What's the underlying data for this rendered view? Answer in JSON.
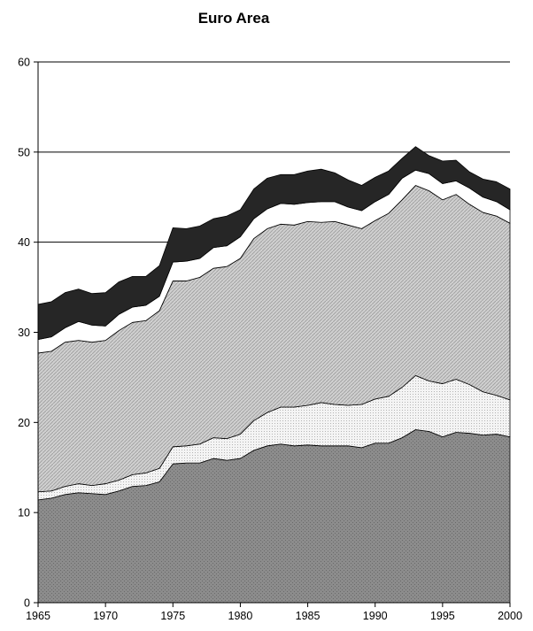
{
  "chart_data": {
    "type": "area",
    "stacked": true,
    "title": "Euro Area",
    "xlabel": "",
    "ylabel": "",
    "xlim": [
      1965,
      2000
    ],
    "ylim": [
      0,
      60
    ],
    "x_ticks": [
      1965,
      1970,
      1975,
      1980,
      1985,
      1990,
      1995,
      2000
    ],
    "y_ticks": [
      0,
      10,
      20,
      30,
      40,
      50,
      60
    ],
    "gridlines": [
      10,
      20,
      30,
      40,
      50,
      60
    ],
    "legend": "none",
    "x": [
      1965,
      1966,
      1967,
      1968,
      1969,
      1970,
      1971,
      1972,
      1973,
      1974,
      1975,
      1976,
      1977,
      1978,
      1979,
      1980,
      1981,
      1982,
      1983,
      1984,
      1985,
      1986,
      1987,
      1988,
      1989,
      1990,
      1991,
      1992,
      1993,
      1994,
      1995,
      1996,
      1997,
      1998,
      1999,
      2000
    ],
    "series": [
      {
        "color": "#8c8c8c",
        "pattern": "dark-dots",
        "values": [
          11.4,
          11.6,
          12.0,
          12.2,
          12.1,
          12.0,
          12.4,
          12.9,
          13.0,
          13.4,
          15.4,
          15.5,
          15.5,
          16.0,
          15.8,
          16.0,
          16.9,
          17.4,
          17.6,
          17.4,
          17.5,
          17.4,
          17.4,
          17.4,
          17.2,
          17.7,
          17.7,
          18.3,
          19.2,
          19.0,
          18.4,
          18.9,
          18.8,
          18.6,
          18.7,
          18.4
        ]
      },
      {
        "color": "#f0f0f0",
        "pattern": "light-dots",
        "values": [
          0.9,
          0.8,
          0.9,
          1.0,
          0.9,
          1.2,
          1.2,
          1.3,
          1.4,
          1.5,
          1.9,
          1.9,
          2.1,
          2.3,
          2.4,
          2.7,
          3.3,
          3.7,
          4.1,
          4.3,
          4.4,
          4.8,
          4.6,
          4.5,
          4.8,
          4.9,
          5.2,
          5.6,
          6.0,
          5.6,
          5.9,
          5.9,
          5.4,
          4.8,
          4.3,
          4.1
        ]
      },
      {
        "color": "#c8c8c8",
        "pattern": "diagonal-hatch",
        "values": [
          15.4,
          15.5,
          16.0,
          15.9,
          15.9,
          15.9,
          16.6,
          16.9,
          16.9,
          17.5,
          18.4,
          18.3,
          18.5,
          18.8,
          19.1,
          19.5,
          20.2,
          20.4,
          20.3,
          20.2,
          20.4,
          20.0,
          20.3,
          20.0,
          19.5,
          19.8,
          20.3,
          20.8,
          21.1,
          21.1,
          20.4,
          20.5,
          20.0,
          19.9,
          19.9,
          19.6
        ]
      },
      {
        "color": "#ffffff",
        "pattern": "solid",
        "values": [
          1.5,
          1.6,
          1.6,
          2.1,
          1.9,
          1.6,
          1.8,
          1.7,
          1.7,
          1.6,
          2.1,
          2.2,
          2.1,
          2.3,
          2.3,
          2.4,
          2.2,
          2.2,
          2.3,
          2.3,
          2.1,
          2.3,
          2.2,
          2.0,
          2.0,
          2.1,
          2.1,
          2.4,
          1.7,
          1.9,
          1.8,
          1.5,
          1.8,
          1.7,
          1.6,
          1.5
        ]
      },
      {
        "color": "#262626",
        "pattern": "solid",
        "values": [
          3.9,
          3.9,
          3.9,
          3.6,
          3.5,
          3.7,
          3.6,
          3.4,
          3.2,
          3.4,
          3.8,
          3.6,
          3.6,
          3.2,
          3.3,
          3.0,
          3.3,
          3.4,
          3.2,
          3.3,
          3.5,
          3.6,
          3.2,
          3.0,
          2.8,
          2.7,
          2.6,
          2.2,
          2.6,
          2.0,
          2.5,
          2.3,
          1.8,
          2.0,
          2.2,
          2.3
        ]
      }
    ]
  }
}
